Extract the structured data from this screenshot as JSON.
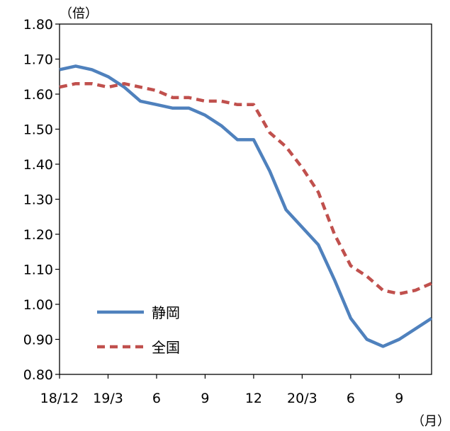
{
  "chart_data": {
    "type": "line",
    "y_unit": "（倍）",
    "x_unit": "（月）",
    "ylim": [
      0.8,
      1.8
    ],
    "y_ticks": [
      "1.80",
      "1.70",
      "1.60",
      "1.50",
      "1.40",
      "1.30",
      "1.20",
      "1.10",
      "1.00",
      "0.90",
      "0.80"
    ],
    "x_tick_labels": [
      {
        "index": 0,
        "label": "18/12"
      },
      {
        "index": 3,
        "label": "19/3"
      },
      {
        "index": 6,
        "label": "6"
      },
      {
        "index": 9,
        "label": "9"
      },
      {
        "index": 12,
        "label": "12"
      },
      {
        "index": 15,
        "label": "20/3"
      },
      {
        "index": 18,
        "label": "6"
      },
      {
        "index": 21,
        "label": "9"
      }
    ],
    "categories": [
      "18/12",
      "19/1",
      "19/2",
      "19/3",
      "19/4",
      "19/5",
      "19/6",
      "19/7",
      "19/8",
      "19/9",
      "19/10",
      "19/11",
      "19/12",
      "20/1",
      "20/2",
      "20/3",
      "20/4",
      "20/5",
      "20/6",
      "20/7",
      "20/8",
      "20/9",
      "20/10",
      "20/11"
    ],
    "series": [
      {
        "name": "静岡",
        "color": "#4f81bd",
        "style": "solid",
        "values": [
          1.67,
          1.68,
          1.67,
          1.65,
          1.62,
          1.58,
          1.57,
          1.56,
          1.56,
          1.54,
          1.51,
          1.47,
          1.47,
          1.38,
          1.27,
          1.22,
          1.17,
          1.07,
          0.96,
          0.9,
          0.88,
          0.9,
          0.93,
          0.96
        ]
      },
      {
        "name": "全国",
        "color": "#c0504d",
        "style": "dashed",
        "values": [
          1.62,
          1.63,
          1.63,
          1.62,
          1.63,
          1.62,
          1.61,
          1.59,
          1.59,
          1.58,
          1.58,
          1.57,
          1.57,
          1.49,
          1.45,
          1.39,
          1.32,
          1.2,
          1.11,
          1.08,
          1.04,
          1.03,
          1.04,
          1.06
        ]
      }
    ],
    "legend": {
      "placement": "lower-left"
    },
    "grid": false
  }
}
